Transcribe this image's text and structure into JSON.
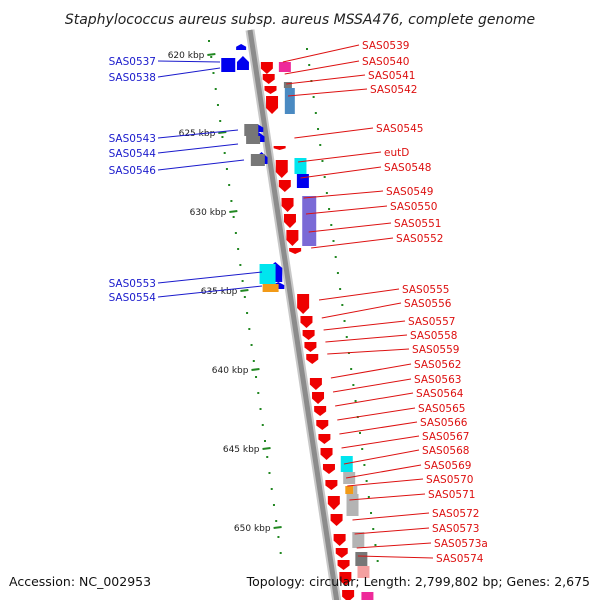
{
  "title": "Staphylococcus aureus subsp. aureus MSSA476, complete genome",
  "footer": {
    "accession": "Accession: NC_002953",
    "topology": "Topology: circular; Length: 2,799,802 bp; Genes: 2,675"
  },
  "colors": {
    "forward_label": "#1a1acc",
    "reverse_label": "#dd1111",
    "forward_gene": "#0000ee",
    "reverse_gene": "#ee0000",
    "backbone": "#8c8c8c",
    "kbp_tick": "#228822",
    "cyan": "#00e5ee",
    "orange": "#f29a17",
    "magenta": "#ee2a9a",
    "steelblue": "#4a8ac2",
    "violet": "#7a6ad6",
    "grey": "#777777",
    "light_grey": "#b4b4b4"
  },
  "kbp_labels": [
    "620 kbp",
    "625 kbp",
    "630 kbp",
    "635 kbp",
    "640 kbp",
    "645 kbp",
    "650 kbp"
  ],
  "left_labels": [
    "SAS0537",
    "SAS0538",
    "SAS0543",
    "SAS0544",
    "SAS0546",
    "SAS0553",
    "SAS0554"
  ],
  "right_labels": [
    "SAS0539",
    "SAS0540",
    "SAS0541",
    "SAS0542",
    "SAS0545",
    "eutD",
    "SAS0548",
    "SAS0549",
    "SAS0550",
    "SAS0551",
    "SAS0552",
    "SAS0555",
    "SAS0556",
    "SAS0557",
    "SAS0558",
    "SAS0559",
    "SAS0562",
    "SAS0563",
    "SAS0564",
    "SAS0565",
    "SAS0566",
    "SAS0567",
    "SAS0568",
    "SAS0569",
    "SAS0570",
    "SAS0571",
    "SAS0572",
    "SAS0573",
    "SAS0573a",
    "SAS0574"
  ]
}
